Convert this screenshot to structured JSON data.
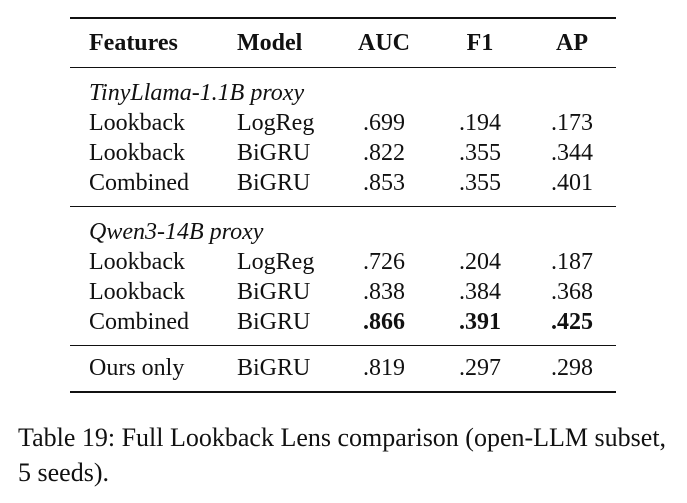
{
  "table": {
    "headers": {
      "features": "Features",
      "model": "Model",
      "auc": "AUC",
      "f1": "F1",
      "ap": "AP"
    },
    "groups": [
      {
        "title": "TinyLlama-1.1B proxy",
        "rows": [
          {
            "features": "Lookback",
            "model": "LogReg",
            "auc": ".699",
            "f1": ".194",
            "ap": ".173"
          },
          {
            "features": "Lookback",
            "model": "BiGRU",
            "auc": ".822",
            "f1": ".355",
            "ap": ".344"
          },
          {
            "features": "Combined",
            "model": "BiGRU",
            "auc": ".853",
            "f1": ".355",
            "ap": ".401"
          }
        ]
      },
      {
        "title": "Qwen3-14B proxy",
        "rows": [
          {
            "features": "Lookback",
            "model": "LogReg",
            "auc": ".726",
            "f1": ".204",
            "ap": ".187"
          },
          {
            "features": "Lookback",
            "model": "BiGRU",
            "auc": ".838",
            "f1": ".384",
            "ap": ".368"
          },
          {
            "features": "Combined",
            "model": "BiGRU",
            "auc": ".866",
            "f1": ".391",
            "ap": ".425",
            "bold": true
          }
        ]
      }
    ],
    "final_row": {
      "features": "Ours only",
      "model": "BiGRU",
      "auc": ".819",
      "f1": ".297",
      "ap": ".298"
    }
  },
  "caption": "Table 19: Full Lookback Lens comparison (open-LLM subset, 5 seeds)."
}
